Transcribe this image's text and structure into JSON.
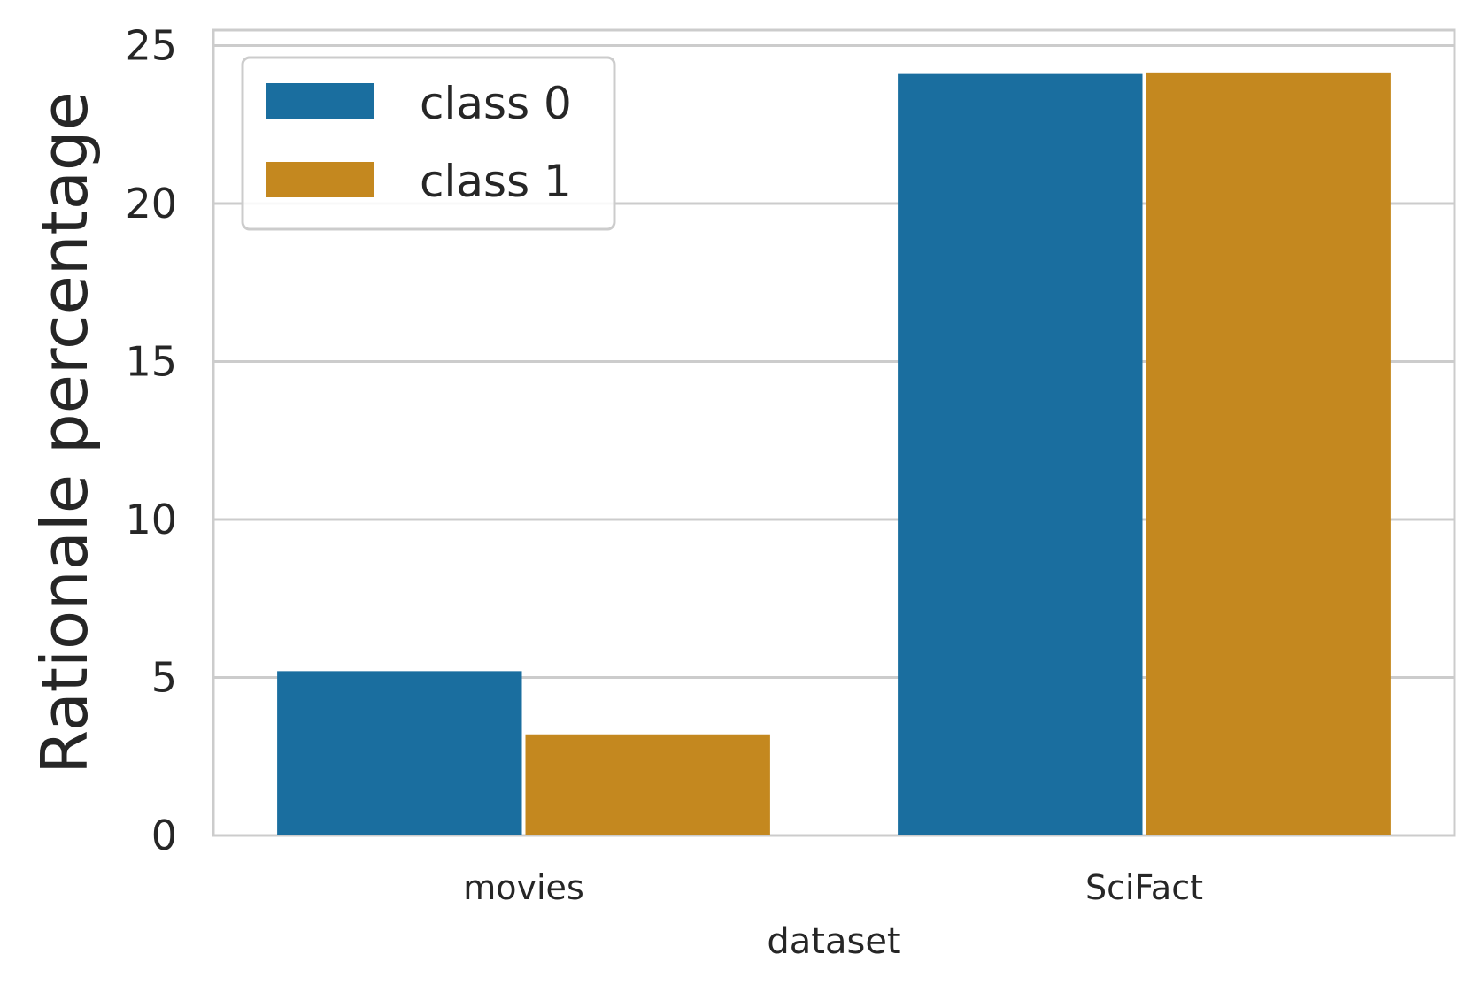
{
  "chart_data": {
    "type": "bar",
    "categories": [
      "movies",
      "SciFact"
    ],
    "series": [
      {
        "name": "class 0",
        "values": [
          5.2,
          24.1
        ],
        "color": "#1a6e9f"
      },
      {
        "name": "class 1",
        "values": [
          3.2,
          24.15
        ],
        "color": "#c4881f"
      }
    ],
    "xlabel": "dataset",
    "ylabel": "Rationale percentage",
    "ylim": [
      0,
      25.5
    ],
    "yticks": [
      0,
      5,
      10,
      15,
      20,
      25
    ],
    "grid": true,
    "legend_position": "top-left"
  }
}
